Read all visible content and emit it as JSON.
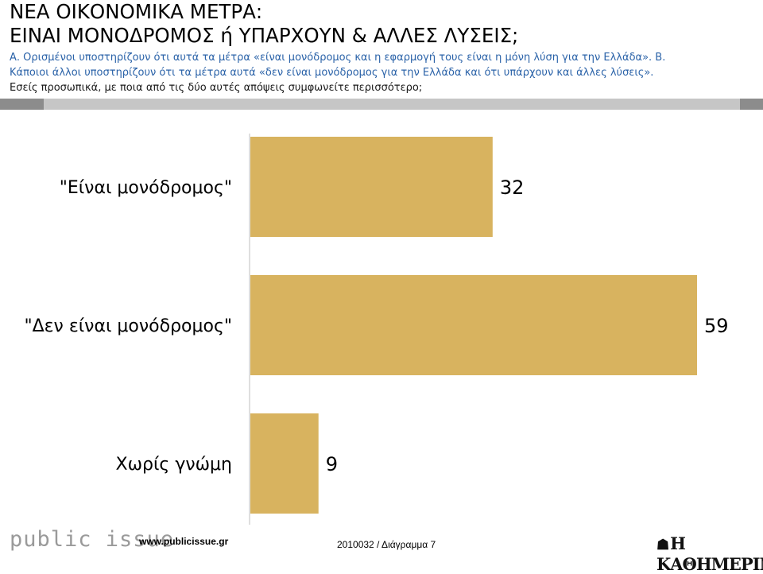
{
  "title_lines": [
    "ΝΕΑ ΟΙΚΟΝΟΜΙΚΑ ΜΕΤΡΑ:",
    "ΕΙΝΑΙ ΜΟΝΟΔΡΟΜΟΣ ή ΥΠΑΡΧΟΥΝ & ΑΛΛΕΣ ΛΥΣΕΙΣ;"
  ],
  "question_lines": [
    "Α. Ορισμένοι υποστηρίζουν ότι αυτά τα μέτρα «είναι μονόδρομος και η εφαρμογή τους είναι η μόνη λύση για την Ελλάδα». Β.",
    "Κάποιοι άλλοι υποστηρίζουν ότι τα μέτρα αυτά «δεν είναι μονόδρομος για την Ελλάδα και ότι υπάρχουν και άλλες λύσεις».",
    "Εσείς προσωπικά, με ποια από τις δύο αυτές απόψεις συμφωνείτε περισσότερο;"
  ],
  "chart_data": {
    "type": "bar",
    "orientation": "horizontal",
    "categories": [
      "\"Είναι μονόδρομος\"",
      "\"Δεν είναι μονόδρομος\"",
      "Χωρίς γνώμη"
    ],
    "values": [
      32,
      59,
      9
    ],
    "data_labels": [
      "32",
      "59",
      "9"
    ],
    "xlim": [
      0,
      59
    ],
    "grid": false,
    "bar_color": "#d8b35f",
    "axis_color": "#bfbfbf"
  },
  "footer": {
    "logo": "public issue",
    "url": "www.publicissue.gr",
    "code": "2010032 / Διάγραμμα 7",
    "newspaper": "Η ΚΑΘΗΜΕΡΙΝΗ"
  }
}
